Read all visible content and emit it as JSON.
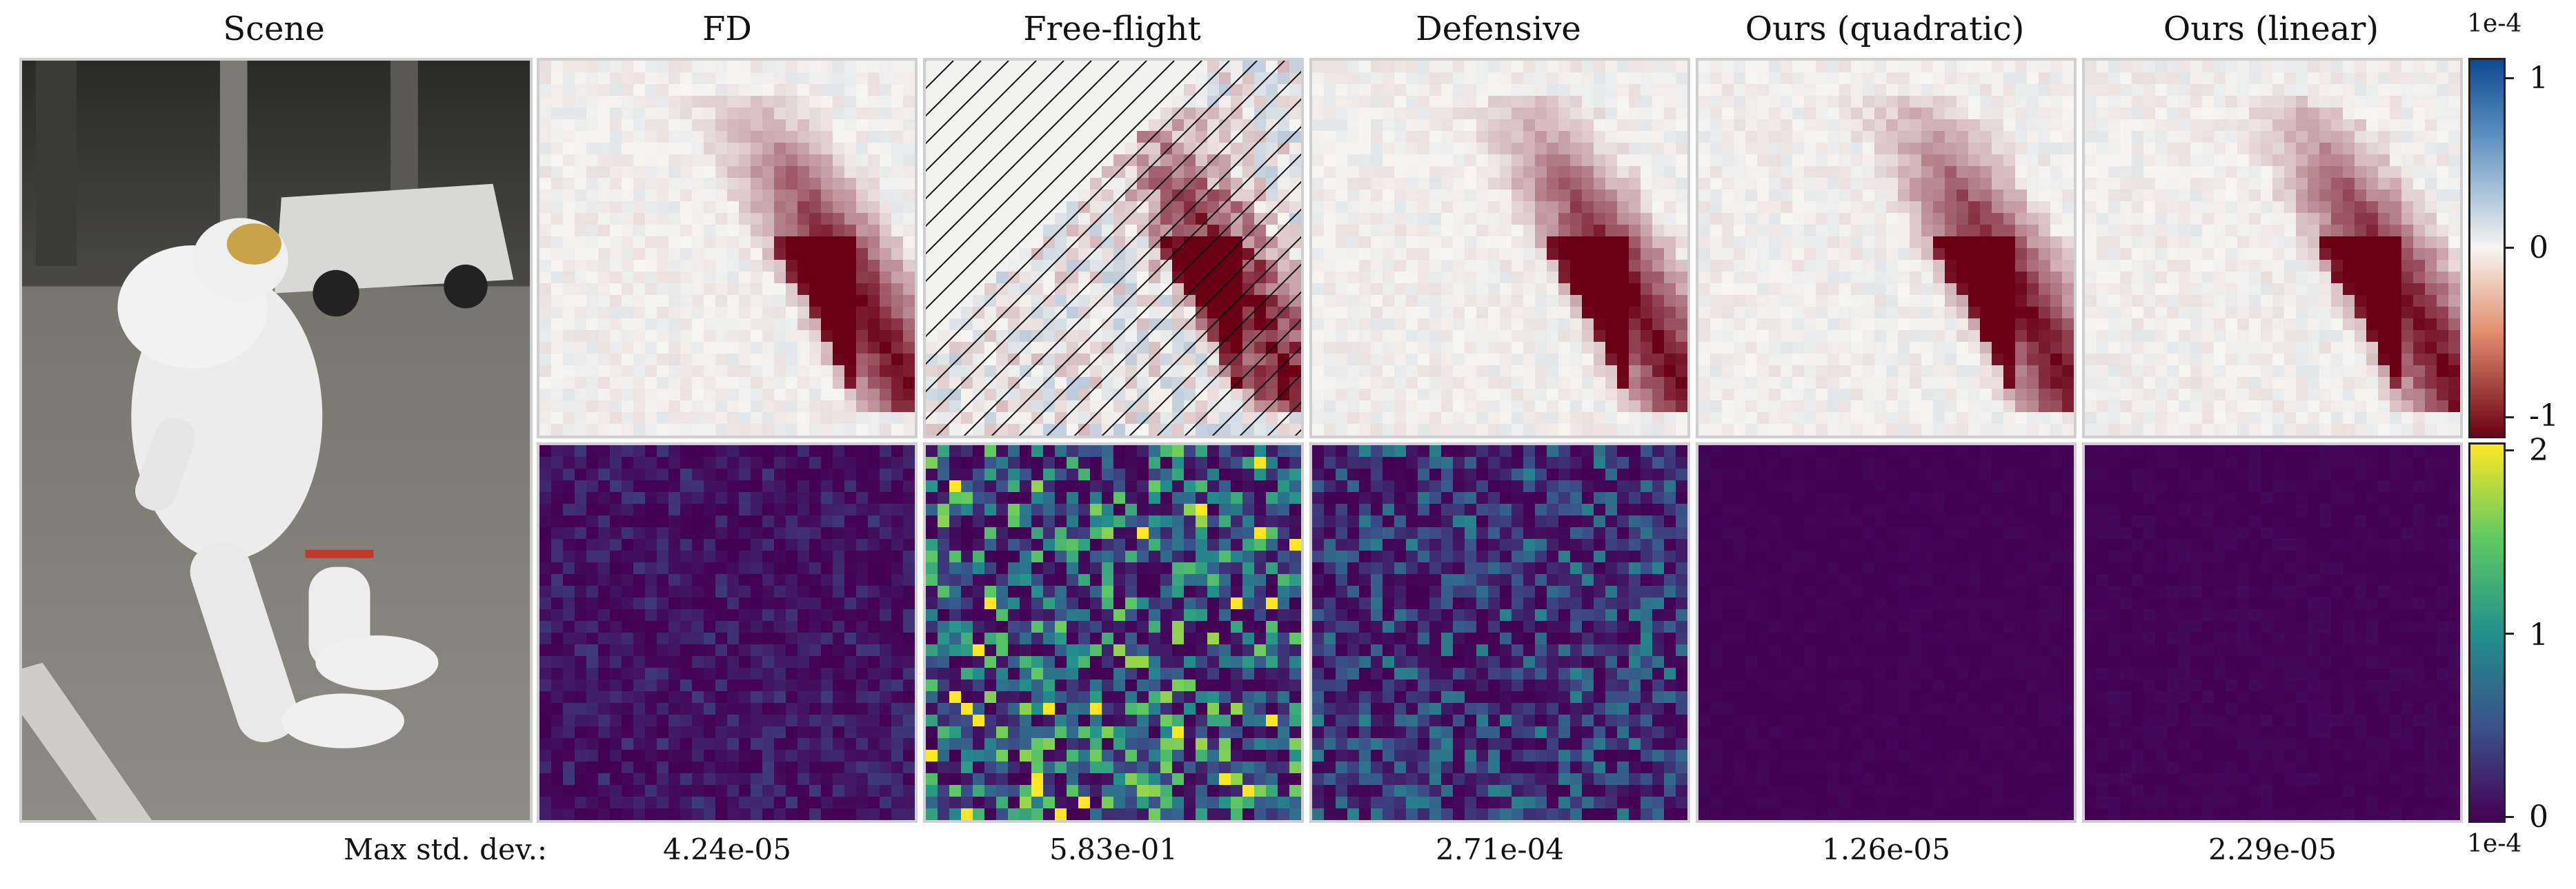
{
  "figure": {
    "scene_title": "Scene",
    "row_label": "Max std. dev.:",
    "columns": [
      {
        "title": "FD",
        "max_std": "4.24e-05"
      },
      {
        "title": "Free-flight",
        "max_std": "5.83e-01"
      },
      {
        "title": "Defensive",
        "max_std": "2.71e-04"
      },
      {
        "title": "Ours (quadratic)",
        "max_std": "1.26e-05"
      },
      {
        "title": "Ours (linear)",
        "max_std": "2.29e-05"
      }
    ]
  },
  "colorbars": {
    "gradient": {
      "exponent": "1e-4",
      "ticks": [
        "1",
        "0",
        "-1"
      ],
      "colormap": "red-white-blue",
      "colors": {
        "top": "#0d4a8f",
        "mid": "#f7f5f2",
        "bottom": "#6b0015"
      }
    },
    "stddev": {
      "exponent": "1e-4",
      "ticks": [
        "2",
        "1",
        "0"
      ],
      "colormap": "viridis",
      "colors": {
        "top": "#fde725",
        "mid": "#21918c",
        "bottom": "#440154"
      }
    }
  }
}
